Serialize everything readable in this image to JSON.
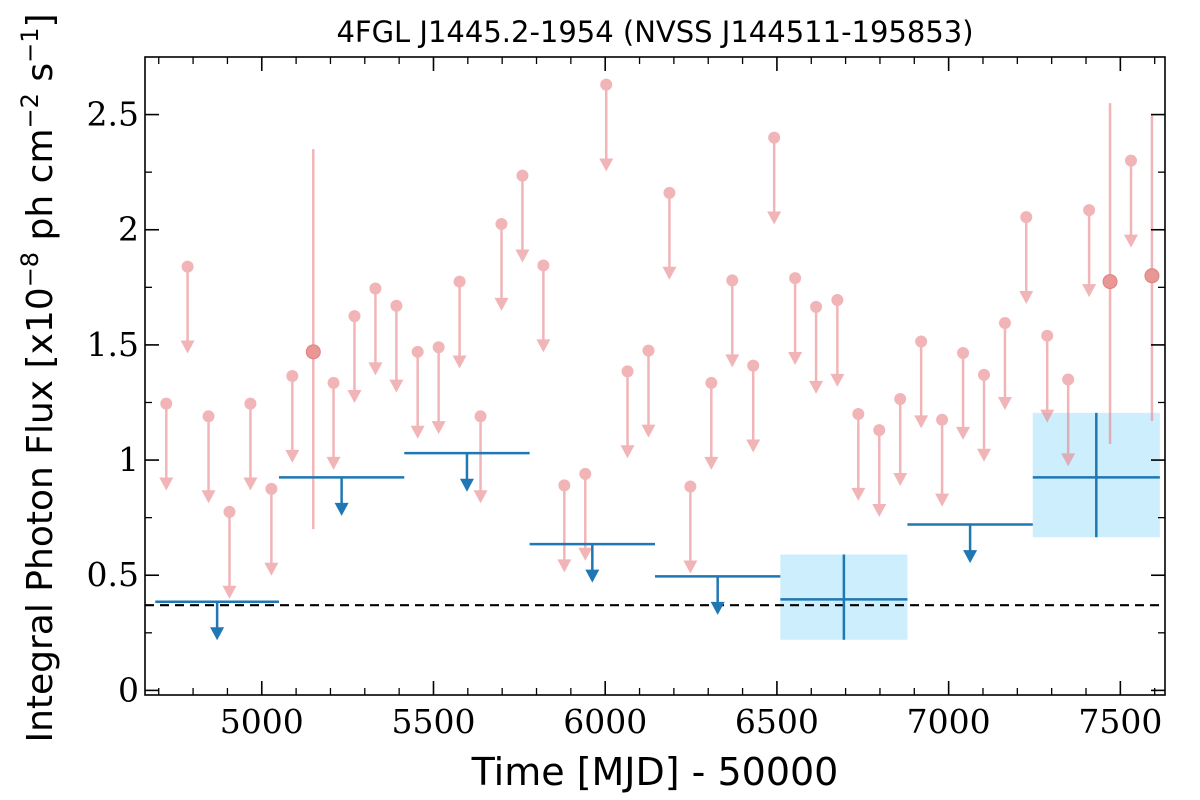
{
  "chart_data": {
    "type": "scatter",
    "title": "4FGL J1445.2-1954 (NVSS J144511-195853)",
    "xlabel": "Time [MJD] - 50000",
    "ylabel_main": "Integral Photon Flux [x10",
    "ylabel_exp1": "−8",
    "ylabel_mid": " ph cm",
    "ylabel_exp2": "−2",
    "ylabel_mid2": " s",
    "ylabel_exp3": "−1",
    "ylabel_end": "]",
    "xlim": [
      4660,
      7630
    ],
    "ylim": [
      -0.02,
      2.75
    ],
    "x_ticks": [
      5000,
      5500,
      6000,
      6500,
      7000,
      7500
    ],
    "y_ticks": [
      {
        "value": 0,
        "label": "0"
      },
      {
        "value": 0.5,
        "label": "0.5"
      },
      {
        "value": 1,
        "label": "1"
      },
      {
        "value": 1.5,
        "label": "1.5"
      },
      {
        "value": 2,
        "label": "2"
      },
      {
        "value": 2.5,
        "label": "2.5"
      }
    ],
    "x_minor_step": 100,
    "y_minor_step": 0.25,
    "reference_line": 0.37,
    "colors": {
      "short_bin": "#e8858a",
      "long_bin": "#1f77b4",
      "box_fill": "#cdeefc",
      "ref_line": "#000000"
    },
    "short_bin_upper_limits": [
      {
        "x": 4722,
        "y": 1.245
      },
      {
        "x": 4784,
        "y": 1.84
      },
      {
        "x": 4845,
        "y": 1.19
      },
      {
        "x": 4906,
        "y": 0.775
      },
      {
        "x": 4967,
        "y": 1.245
      },
      {
        "x": 5028,
        "y": 0.875
      },
      {
        "x": 5089,
        "y": 1.365
      },
      {
        "x": 5209,
        "y": 1.335
      },
      {
        "x": 5270,
        "y": 1.625
      },
      {
        "x": 5331,
        "y": 1.745
      },
      {
        "x": 5392,
        "y": 1.67
      },
      {
        "x": 5454,
        "y": 1.47
      },
      {
        "x": 5515,
        "y": 1.49
      },
      {
        "x": 5576,
        "y": 1.775
      },
      {
        "x": 5637,
        "y": 1.19
      },
      {
        "x": 5698,
        "y": 2.025
      },
      {
        "x": 5759,
        "y": 2.235
      },
      {
        "x": 5820,
        "y": 1.845
      },
      {
        "x": 5881,
        "y": 0.89
      },
      {
        "x": 5942,
        "y": 0.94
      },
      {
        "x": 6003,
        "y": 2.63
      },
      {
        "x": 6065,
        "y": 1.385
      },
      {
        "x": 6126,
        "y": 1.475
      },
      {
        "x": 6187,
        "y": 2.16
      },
      {
        "x": 6248,
        "y": 0.885
      },
      {
        "x": 6309,
        "y": 1.335
      },
      {
        "x": 6370,
        "y": 1.78
      },
      {
        "x": 6431,
        "y": 1.41
      },
      {
        "x": 6492,
        "y": 2.4
      },
      {
        "x": 6553,
        "y": 1.79
      },
      {
        "x": 6614,
        "y": 1.665
      },
      {
        "x": 6676,
        "y": 1.695
      },
      {
        "x": 6737,
        "y": 1.2
      },
      {
        "x": 6798,
        "y": 1.13
      },
      {
        "x": 6859,
        "y": 1.265
      },
      {
        "x": 6920,
        "y": 1.515
      },
      {
        "x": 6981,
        "y": 1.175
      },
      {
        "x": 7042,
        "y": 1.465
      },
      {
        "x": 7103,
        "y": 1.37
      },
      {
        "x": 7164,
        "y": 1.595
      },
      {
        "x": 7226,
        "y": 2.055
      },
      {
        "x": 7287,
        "y": 1.54
      },
      {
        "x": 7348,
        "y": 1.35
      },
      {
        "x": 7409,
        "y": 2.085
      },
      {
        "x": 7531,
        "y": 2.3
      }
    ],
    "short_bin_detections": [
      {
        "x": 5150,
        "y": 1.47,
        "err_low": 0.7,
        "err_high": 2.35
      },
      {
        "x": 7470,
        "y": 1.775,
        "err_low": 1.07,
        "err_high": 2.55
      },
      {
        "x": 7592,
        "y": 1.8,
        "err_low": 1.17,
        "err_high": 2.5
      }
    ],
    "long_bin_upper_limits": [
      {
        "x_start": 4690,
        "x_end": 5050,
        "y": 0.385
      },
      {
        "x_start": 5050,
        "x_end": 5415,
        "y": 0.925
      },
      {
        "x_start": 5415,
        "x_end": 5780,
        "y": 1.03
      },
      {
        "x_start": 5780,
        "x_end": 6145,
        "y": 0.635
      },
      {
        "x_start": 6145,
        "x_end": 6510,
        "y": 0.495
      },
      {
        "x_start": 6880,
        "x_end": 7245,
        "y": 0.72
      }
    ],
    "long_bin_detections": [
      {
        "x_start": 6510,
        "x_end": 6880,
        "y": 0.395,
        "y_low": 0.22,
        "y_high": 0.59
      },
      {
        "x_start": 7245,
        "x_end": 7615,
        "y": 0.925,
        "y_low": 0.665,
        "y_high": 1.205
      }
    ]
  }
}
